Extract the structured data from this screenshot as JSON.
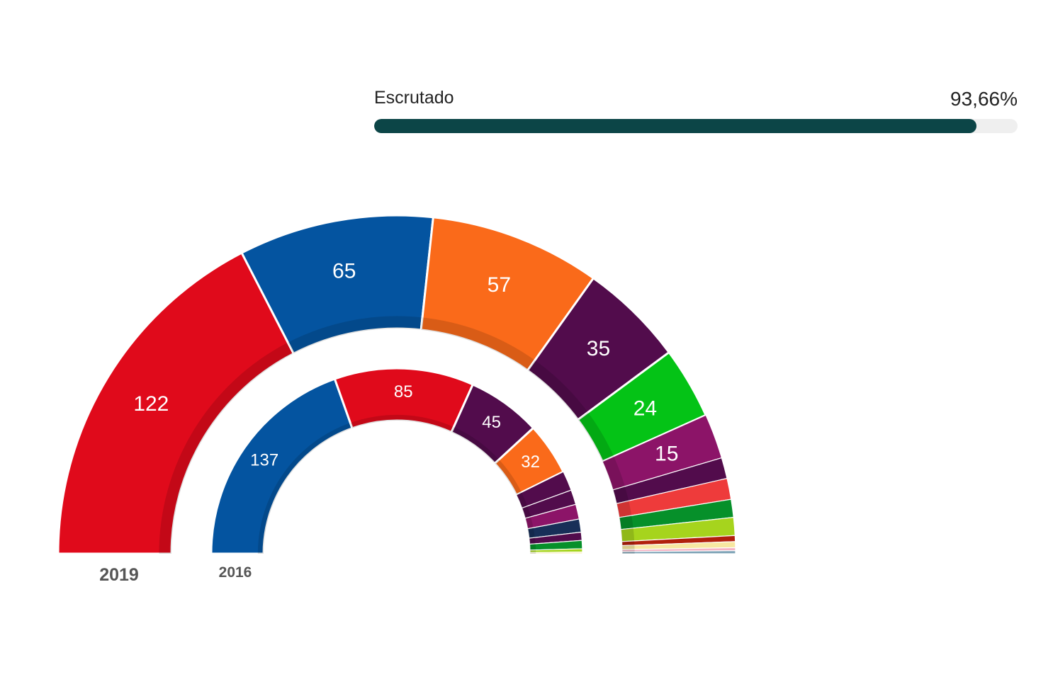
{
  "progress": {
    "label": "Escrutado",
    "value_text": "93,66%",
    "value": 93.66
  },
  "chart_data": [
    {
      "type": "parliament-semicircle",
      "ring_label": "2019",
      "total_seats": 350,
      "segments": [
        {
          "seats": 122,
          "color": "#e00a1b",
          "label": "122"
        },
        {
          "seats": 65,
          "color": "#0454a0",
          "label": "65"
        },
        {
          "seats": 57,
          "color": "#fa6a1a",
          "label": "57"
        },
        {
          "seats": 35,
          "color": "#520c4c",
          "label": "35"
        },
        {
          "seats": 24,
          "color": "#04c316",
          "label": "24"
        },
        {
          "seats": 15,
          "color": "#8c1468",
          "label": "15"
        },
        {
          "seats": 7,
          "color": "#520c4c",
          "label": ""
        },
        {
          "seats": 7,
          "color": "#ee3b3b",
          "label": ""
        },
        {
          "seats": 6,
          "color": "#06902a",
          "label": ""
        },
        {
          "seats": 6,
          "color": "#a6d41d",
          "label": ""
        },
        {
          "seats": 2,
          "color": "#b11f0c",
          "label": ""
        },
        {
          "seats": 2,
          "color": "#f7e7a1",
          "label": ""
        },
        {
          "seats": 1,
          "color": "#f5b1c3",
          "label": ""
        },
        {
          "seats": 1,
          "color": "#7aa0b4",
          "label": ""
        }
      ]
    },
    {
      "type": "parliament-semicircle",
      "ring_label": "2016",
      "total_seats": 350,
      "segments": [
        {
          "seats": 137,
          "color": "#0454a0",
          "label": "137"
        },
        {
          "seats": 85,
          "color": "#e00a1b",
          "label": "85"
        },
        {
          "seats": 45,
          "color": "#520c4c",
          "label": "45"
        },
        {
          "seats": 32,
          "color": "#fa6a1a",
          "label": "32"
        },
        {
          "seats": 12,
          "color": "#520c4c",
          "label": ""
        },
        {
          "seats": 9,
          "color": "#520c4c",
          "label": ""
        },
        {
          "seats": 9,
          "color": "#8c1468",
          "label": ""
        },
        {
          "seats": 8,
          "color": "#182f58",
          "label": ""
        },
        {
          "seats": 5,
          "color": "#520c4c",
          "label": ""
        },
        {
          "seats": 5,
          "color": "#06902a",
          "label": ""
        },
        {
          "seats": 2,
          "color": "#a6d41d",
          "label": ""
        },
        {
          "seats": 1,
          "color": "#f7e7a1",
          "label": ""
        }
      ]
    }
  ]
}
